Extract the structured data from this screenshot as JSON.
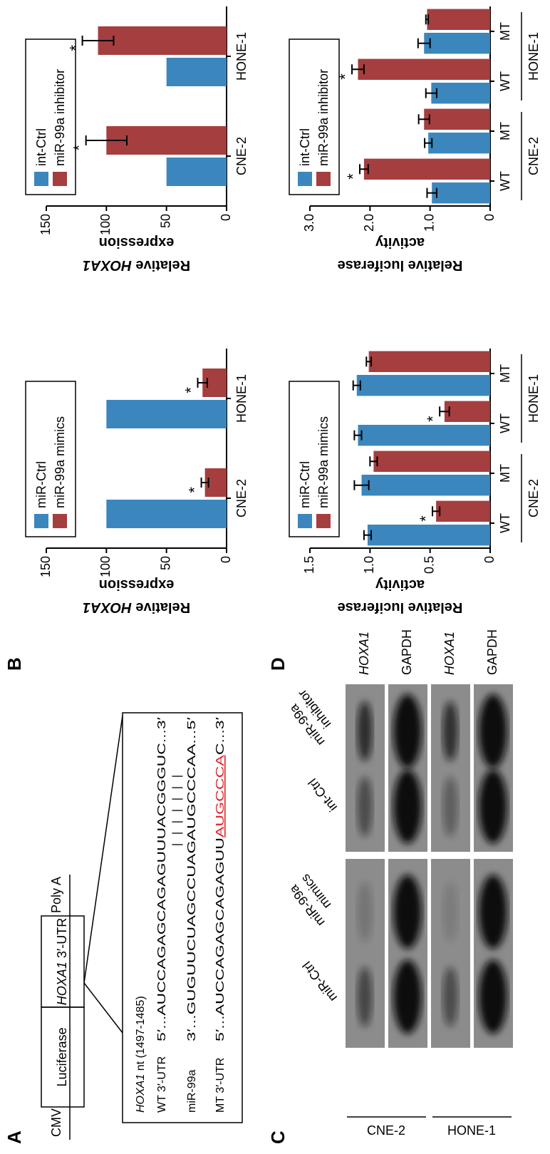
{
  "panels": {
    "A": {
      "label": "A",
      "construct": {
        "promoter": "CMV",
        "reporter": "Luciferase",
        "utr_gene": "HOXA1",
        "utr_suffix": " 3′-UTR",
        "polya": "Poly A"
      },
      "sequences": {
        "header_gene": "HOXA1",
        "header_rest": " nt (1497-1485)",
        "rows": [
          [
            "WT 3′-UTR",
            "5′...AUCCAGAGCAGAGUUUACGGGUC...3′"
          ],
          [
            "miR-99a",
            "3′...GUGUUCUAGCCUAGAUGCCCAA...5′"
          ]
        ],
        "pairing": "| | | | | | |",
        "mt": {
          "name": "MT 3′-UTR",
          "before": "5′...AUCCAGAGCAGAGUU",
          "mutated": "AUGCCCA",
          "after": "C...3′"
        }
      }
    },
    "C": {
      "label": "C",
      "columns": [
        [
          "miR-Ctrl"
        ],
        [
          "miR-99a",
          "mimics"
        ],
        [
          "int-Ctrl"
        ],
        [
          "miR-99a",
          "inhibitor"
        ]
      ],
      "cell_lines": [
        "CNE-2",
        "HONE-1"
      ],
      "bands": [
        "HOXA1",
        "GAPDH"
      ]
    }
  },
  "chart_data": [
    {
      "type": "bar",
      "panel": "B",
      "ylabel": [
        {
          "text": "Relative "
        },
        {
          "text": "HOXA1",
          "italic": true
        },
        {
          "text": "expression",
          "newline": true
        }
      ],
      "categories": [
        "CNE-2",
        "HONE-1"
      ],
      "series": [
        {
          "name": "miR-Ctrl",
          "color": "#3b87bd",
          "values": [
            100,
            100
          ]
        },
        {
          "name": "miR-99a mimics",
          "color": "#a53e3f",
          "values": [
            18,
            20
          ],
          "errors": [
            3,
            4
          ],
          "annotations": [
            "*",
            "*"
          ]
        }
      ],
      "ylim": [
        0,
        150
      ],
      "yticks": [
        0,
        50,
        100,
        150
      ]
    },
    {
      "type": "bar",
      "ylabel": [
        {
          "text": "Relative "
        },
        {
          "text": "HOXA1",
          "italic": true
        },
        {
          "text": "expression",
          "newline": true
        }
      ],
      "categories": [
        "CNE-2",
        "HONE-1"
      ],
      "series": [
        {
          "name": "int-Ctrl",
          "color": "#3b87bd",
          "values": [
            50,
            50
          ]
        },
        {
          "name": "miR-99a inhibitor",
          "color": "#a53e3f",
          "values": [
            100,
            107
          ],
          "errors": [
            17,
            13
          ],
          "annotations": [
            "*",
            "*"
          ]
        }
      ],
      "ylim": [
        0,
        150
      ],
      "yticks": [
        0,
        50,
        100,
        150
      ]
    },
    {
      "type": "bar",
      "panel": "D",
      "ylabel": [
        {
          "text": "Relative luciferase"
        },
        {
          "text": "activity",
          "newline": true
        }
      ],
      "categories": [
        "WT",
        "MT",
        "WT",
        "MT"
      ],
      "groups": [
        "CNE-2",
        "HONE-1"
      ],
      "series": [
        {
          "name": "miR-Ctrl",
          "color": "#3b87bd",
          "values": [
            1.02,
            1.07,
            1.1,
            1.11
          ],
          "errors": [
            0.03,
            0.06,
            0.03,
            0.03
          ]
        },
        {
          "name": "miR-99a mimics",
          "color": "#a53e3f",
          "values": [
            0.45,
            0.97,
            0.38,
            1.01
          ],
          "errors": [
            0.03,
            0.03,
            0.04,
            0.02
          ],
          "annotations": [
            "*",
            null,
            "*",
            null
          ]
        }
      ],
      "ylim": [
        0,
        1.5
      ],
      "yticks": [
        0,
        0.5,
        {
          "value": 1,
          "label": "1.0"
        },
        1.5
      ]
    },
    {
      "type": "bar",
      "ylabel": [
        {
          "text": "Relative luciferase"
        },
        {
          "text": "activity",
          "newline": true
        }
      ],
      "categories": [
        "WT",
        "MT",
        "WT",
        "MT"
      ],
      "groups": [
        "CNE-2",
        "HONE-1"
      ],
      "series": [
        {
          "name": "int-Ctrl",
          "color": "#3b87bd",
          "values": [
            0.97,
            1.03,
            0.98,
            1.1
          ],
          "errors": [
            0.08,
            0.06,
            0.09,
            0.1
          ]
        },
        {
          "name": "miR-99a inhibitor",
          "color": "#a53e3f",
          "values": [
            2.1,
            1.1,
            2.2,
            1.05
          ],
          "errors": [
            0.07,
            0.09,
            0.1,
            0.02
          ],
          "annotations": [
            "*",
            null,
            "*",
            null
          ]
        }
      ],
      "ylim": [
        0,
        3
      ],
      "yticks": [
        0,
        {
          "value": 1,
          "label": "1.0"
        },
        {
          "value": 2,
          "label": "2.0"
        },
        {
          "value": 3,
          "label": "3.0"
        }
      ]
    }
  ]
}
